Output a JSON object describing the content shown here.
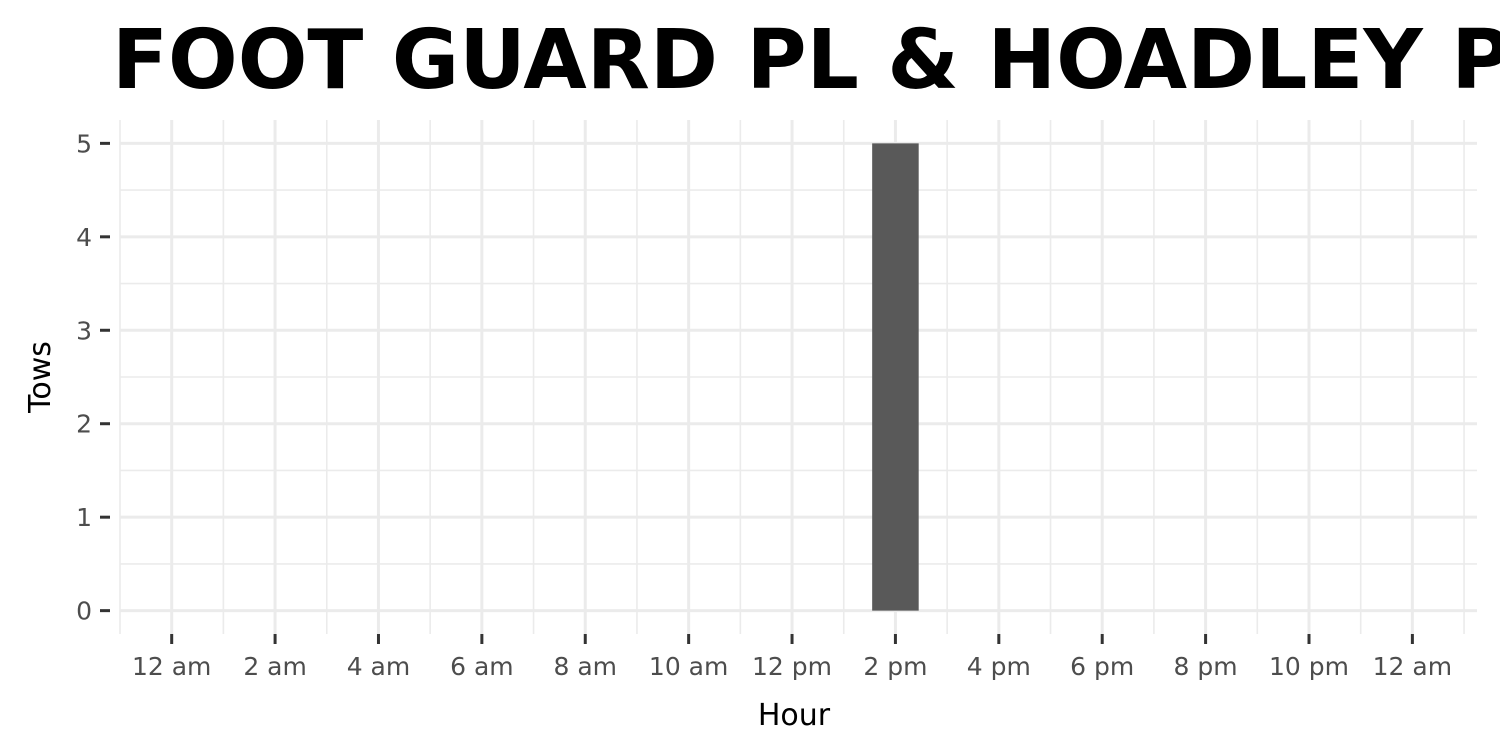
{
  "chart_data": {
    "type": "bar",
    "title": "FOOT GUARD PL & HOADLEY PL",
    "xlabel": "Hour",
    "ylabel": "Tows",
    "x_unit": "hour of day",
    "x_tick_values": [
      0,
      2,
      4,
      6,
      8,
      10,
      12,
      14,
      16,
      18,
      20,
      22,
      24
    ],
    "x_tick_labels": [
      "12 am",
      "2 am",
      "4 am",
      "6 am",
      "8 am",
      "10 am",
      "12 pm",
      "2 pm",
      "4 pm",
      "6 pm",
      "8 pm",
      "10 pm",
      "12 am"
    ],
    "xlim": [
      -1,
      25.25
    ],
    "y_ticks": [
      0,
      1,
      2,
      3,
      4,
      5
    ],
    "y_tick_labels": [
      "0",
      "1",
      "2",
      "3",
      "4",
      "5"
    ],
    "ylim": [
      -0.25,
      5.25
    ],
    "bar_width_hours": 0.9,
    "bars": [
      {
        "x": 14,
        "value": 5
      }
    ],
    "grid": true,
    "legend": "none",
    "colors": {
      "bar": "#595959",
      "grid": "#ebebeb",
      "tick": "#333333",
      "background": "#ffffff"
    }
  }
}
